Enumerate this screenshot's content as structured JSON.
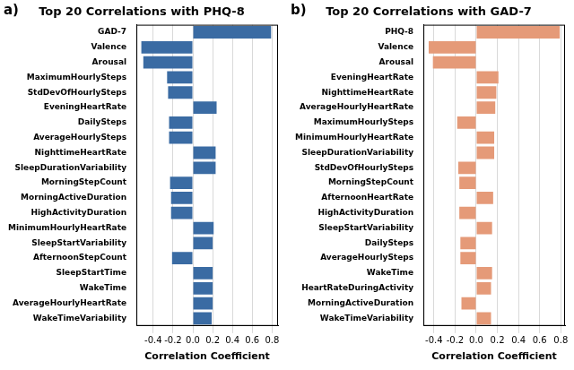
{
  "chart_data": [
    {
      "type": "bar",
      "orientation": "horizontal",
      "panel": "a)",
      "title": "Top 20 Correlations with PHQ-8",
      "x_label": "Correlation Coefficient",
      "color": "#3a6ba3",
      "grid": true,
      "categories": [
        "GAD-7",
        "Valence",
        "Arousal",
        "MaximumHourlySteps",
        "StdDevOfHourlySteps",
        "EveningHeartRate",
        "DailySteps",
        "AverageHourlySteps",
        "NighttimeHeartRate",
        "SleepDurationVariability",
        "MorningStepCount",
        "MorningActiveDuration",
        "HighActivityDuration",
        "MinimumHourlyHeartRate",
        "SleepStartVariability",
        "AfternoonStepCount",
        "SleepStartTime",
        "WakeTime",
        "AverageHourlyHeartRate",
        "WakeTimeVariability"
      ],
      "values": [
        0.79,
        -0.52,
        -0.5,
        -0.26,
        -0.25,
        0.24,
        -0.24,
        -0.24,
        0.23,
        0.23,
        -0.23,
        -0.22,
        -0.22,
        0.21,
        0.2,
        -0.21,
        0.2,
        0.2,
        0.2,
        0.19
      ],
      "xlim": [
        -0.57,
        0.86
      ],
      "xticks": [
        -0.4,
        -0.2,
        {
          "value": 0,
          "label": "0.0"
        },
        0.2,
        0.4,
        0.6,
        0.8
      ]
    },
    {
      "type": "bar",
      "orientation": "horizontal",
      "panel": "b)",
      "title": "Top 20 Correlations with GAD-7",
      "x_label": "Correlation Coefficient",
      "color": "#e59a78",
      "grid": true,
      "categories": [
        "PHQ-8",
        "Valence",
        "Arousal",
        "EveningHeartRate",
        "NighttimeHeartRate",
        "AverageHourlyHeartRate",
        "MaximumHourlySteps",
        "MinimumHourlyHeartRate",
        "SleepDurationVariability",
        "StdDevOfHourlySteps",
        "MorningStepCount",
        "AfternoonHeartRate",
        "HighActivityDuration",
        "SleepStartVariability",
        "DailySteps",
        "AverageHourlySteps",
        "WakeTime",
        "HeartRateDuringActivity",
        "MorningActiveDuration",
        "WakeTimeVariability"
      ],
      "values": [
        0.79,
        -0.45,
        -0.41,
        0.21,
        0.19,
        0.18,
        -0.18,
        0.17,
        0.17,
        -0.17,
        -0.16,
        0.16,
        -0.16,
        0.15,
        -0.15,
        -0.15,
        0.15,
        0.14,
        -0.14,
        0.14
      ],
      "xlim": [
        -0.5,
        0.84
      ],
      "xticks": [
        -0.4,
        -0.2,
        {
          "value": 0,
          "label": "0.0"
        },
        0.2,
        0.4,
        0.6,
        0.8
      ]
    }
  ]
}
